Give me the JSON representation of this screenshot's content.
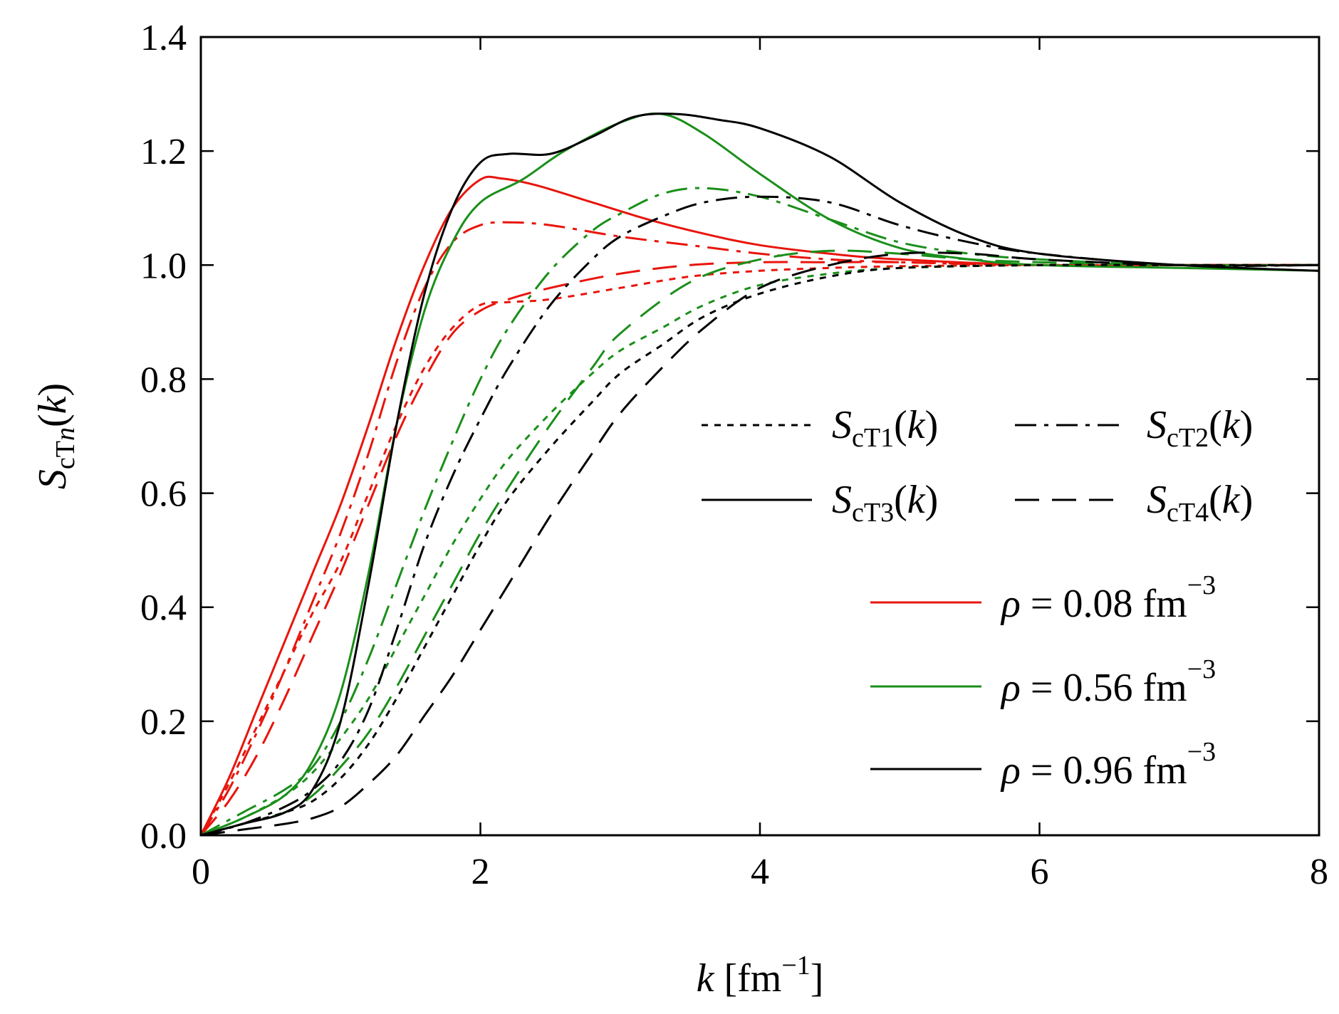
{
  "chart_data": {
    "type": "line",
    "title": "",
    "xlabel": {
      "var": "k",
      "unit_prefix": "[fm",
      "unit_exp": "−1",
      "unit_suffix": "]"
    },
    "ylabel": {
      "var": "S",
      "sub_main": "cT",
      "sub_ital": "n",
      "open": "(",
      "arg": "k",
      "close": ")"
    },
    "xlim": [
      0,
      8
    ],
    "ylim": [
      0,
      1.4
    ],
    "xticks": [
      0,
      2,
      4,
      6,
      8
    ],
    "yticks": [
      0.0,
      0.2,
      0.4,
      0.6,
      0.8,
      1.0,
      1.2,
      1.4
    ],
    "xtick_labels": [
      "0",
      "2",
      "4",
      "6",
      "8"
    ],
    "ytick_labels": [
      "0.0",
      "0.2",
      "0.4",
      "0.6",
      "0.8",
      "1.0",
      "1.2",
      "1.4"
    ],
    "colors": {
      "rho_0.08": "#e8150c",
      "rho_0.56": "#1a8f1a",
      "rho_0.96": "#000000"
    },
    "legend_styles": [
      {
        "label_var": "S",
        "label_sub": "cT1",
        "label_open": "(",
        "label_arg": "k",
        "label_close": ")",
        "dash": "dotted"
      },
      {
        "label_var": "S",
        "label_sub": "cT2",
        "label_open": "(",
        "label_arg": "k",
        "label_close": ")",
        "dash": "dashdot"
      },
      {
        "label_var": "S",
        "label_sub": "cT3",
        "label_open": "(",
        "label_arg": "k",
        "label_close": ")",
        "dash": "solid"
      },
      {
        "label_var": "S",
        "label_sub": "cT4",
        "label_open": "(",
        "label_arg": "k",
        "label_close": ")",
        "dash": "dashed"
      }
    ],
    "legend_densities": [
      {
        "sym": "ρ",
        "eq": " = 0.08 fm",
        "exp": "−3",
        "color_key": "rho_0.08"
      },
      {
        "sym": "ρ",
        "eq": " = 0.56 fm",
        "exp": "−3",
        "color_key": "rho_0.56"
      },
      {
        "sym": "ρ",
        "eq": " = 0.96 fm",
        "exp": "−3",
        "color_key": "rho_0.96"
      }
    ],
    "series": [
      {
        "name": "ScT1 rho=0.08",
        "color_key": "rho_0.08",
        "dash": "dotted",
        "x": [
          0,
          0.2,
          0.4,
          0.6,
          0.8,
          1.0,
          1.2,
          1.4,
          1.6,
          1.8,
          2.0,
          2.2,
          2.5,
          3.0,
          3.5,
          4.0,
          4.5,
          5.0,
          6.0,
          7.0,
          8.0
        ],
        "y": [
          0,
          0.09,
          0.19,
          0.29,
          0.39,
          0.48,
          0.6,
          0.72,
          0.82,
          0.89,
          0.93,
          0.935,
          0.94,
          0.96,
          0.98,
          0.99,
          0.995,
          0.998,
          1.0,
          1.0,
          1.0
        ]
      },
      {
        "name": "ScT2 rho=0.08",
        "color_key": "rho_0.08",
        "dash": "dashdot",
        "x": [
          0,
          0.2,
          0.4,
          0.6,
          0.8,
          1.0,
          1.2,
          1.4,
          1.6,
          1.8,
          2.0,
          2.2,
          2.5,
          3.0,
          3.5,
          4.0,
          4.5,
          5.0,
          6.0,
          7.0,
          8.0
        ],
        "y": [
          0,
          0.08,
          0.18,
          0.29,
          0.41,
          0.53,
          0.67,
          0.83,
          0.96,
          1.04,
          1.07,
          1.075,
          1.07,
          1.05,
          1.035,
          1.02,
          1.01,
          1.005,
          1.0,
          1.0,
          1.0
        ]
      },
      {
        "name": "ScT3 rho=0.08",
        "color_key": "rho_0.08",
        "dash": "solid",
        "x": [
          0,
          0.2,
          0.4,
          0.6,
          0.8,
          1.0,
          1.2,
          1.4,
          1.6,
          1.8,
          2.0,
          2.15,
          2.4,
          2.8,
          3.2,
          3.6,
          4.0,
          4.5,
          5.0,
          6.0,
          7.0,
          8.0
        ],
        "y": [
          0,
          0.1,
          0.22,
          0.34,
          0.46,
          0.58,
          0.72,
          0.87,
          1.0,
          1.1,
          1.15,
          1.152,
          1.14,
          1.11,
          1.08,
          1.055,
          1.035,
          1.02,
          1.01,
          1.0,
          1.0,
          1.0
        ]
      },
      {
        "name": "ScT4 rho=0.08",
        "color_key": "rho_0.08",
        "dash": "dashed",
        "x": [
          0,
          0.2,
          0.4,
          0.6,
          0.8,
          1.0,
          1.2,
          1.4,
          1.6,
          1.8,
          2.0,
          2.2,
          2.5,
          3.0,
          3.5,
          4.0,
          4.5,
          5.0,
          6.0,
          7.0,
          8.0
        ],
        "y": [
          0,
          0.06,
          0.14,
          0.24,
          0.35,
          0.46,
          0.58,
          0.7,
          0.8,
          0.88,
          0.92,
          0.94,
          0.96,
          0.985,
          1.0,
          1.005,
          1.005,
          1.005,
          1.0,
          1.0,
          1.0
        ]
      },
      {
        "name": "ScT1 rho=0.56",
        "color_key": "rho_0.56",
        "dash": "dotted",
        "x": [
          0,
          0.3,
          0.6,
          0.8,
          1.0,
          1.2,
          1.4,
          1.6,
          1.8,
          2.0,
          2.2,
          2.5,
          2.8,
          3.0,
          3.3,
          3.6,
          4.0,
          4.5,
          5.0,
          6.0,
          7.0,
          8.0
        ],
        "y": [
          0,
          0.03,
          0.07,
          0.11,
          0.17,
          0.24,
          0.33,
          0.42,
          0.51,
          0.59,
          0.66,
          0.74,
          0.81,
          0.85,
          0.89,
          0.93,
          0.965,
          0.985,
          0.995,
          1.0,
          1.0,
          1.0
        ]
      },
      {
        "name": "ScT2 rho=0.56",
        "color_key": "rho_0.56",
        "dash": "dashdot",
        "x": [
          0,
          0.3,
          0.6,
          0.8,
          1.0,
          1.2,
          1.4,
          1.6,
          1.8,
          2.0,
          2.2,
          2.5,
          2.8,
          3.0,
          3.3,
          3.6,
          4.0,
          4.5,
          5.0,
          5.5,
          6.0,
          7.0,
          8.0
        ],
        "y": [
          0,
          0.04,
          0.08,
          0.12,
          0.2,
          0.31,
          0.44,
          0.57,
          0.69,
          0.8,
          0.89,
          0.99,
          1.06,
          1.09,
          1.125,
          1.135,
          1.12,
          1.08,
          1.04,
          1.02,
          1.01,
          1.0,
          1.0
        ]
      },
      {
        "name": "ScT3 rho=0.56",
        "color_key": "rho_0.56",
        "dash": "solid",
        "x": [
          0,
          0.3,
          0.6,
          0.8,
          1.0,
          1.2,
          1.4,
          1.6,
          1.8,
          2.0,
          2.3,
          2.6,
          3.0,
          3.3,
          3.6,
          4.0,
          4.5,
          5.0,
          5.5,
          6.0,
          7.0,
          8.0
        ],
        "y": [
          0,
          0.03,
          0.07,
          0.13,
          0.25,
          0.46,
          0.72,
          0.92,
          1.04,
          1.11,
          1.15,
          1.2,
          1.25,
          1.265,
          1.23,
          1.16,
          1.08,
          1.03,
          1.01,
          1.0,
          0.995,
          0.99
        ]
      },
      {
        "name": "ScT4 rho=0.56",
        "color_key": "rho_0.56",
        "dash": "dashed",
        "x": [
          0,
          0.3,
          0.6,
          0.8,
          1.0,
          1.2,
          1.4,
          1.6,
          1.8,
          2.0,
          2.2,
          2.5,
          2.8,
          3.0,
          3.5,
          4.0,
          4.5,
          5.0,
          5.5,
          6.0,
          7.0,
          8.0
        ],
        "y": [
          0,
          0.02,
          0.04,
          0.07,
          0.12,
          0.18,
          0.26,
          0.35,
          0.44,
          0.53,
          0.61,
          0.72,
          0.82,
          0.88,
          0.97,
          1.01,
          1.025,
          1.02,
          1.01,
          1.005,
          1.0,
          1.0
        ]
      },
      {
        "name": "ScT1 rho=0.96",
        "color_key": "rho_0.96",
        "dash": "dotted",
        "x": [
          0,
          0.3,
          0.6,
          0.8,
          1.0,
          1.2,
          1.4,
          1.6,
          1.8,
          2.0,
          2.2,
          2.5,
          2.8,
          3.0,
          3.3,
          3.6,
          4.0,
          4.5,
          5.0,
          6.0,
          7.0,
          8.0
        ],
        "y": [
          0,
          0.02,
          0.04,
          0.06,
          0.1,
          0.16,
          0.24,
          0.33,
          0.42,
          0.51,
          0.59,
          0.68,
          0.76,
          0.81,
          0.86,
          0.91,
          0.95,
          0.98,
          0.995,
          1.0,
          1.0,
          1.0
        ]
      },
      {
        "name": "ScT2 rho=0.96",
        "color_key": "rho_0.96",
        "dash": "dashdot",
        "x": [
          0,
          0.3,
          0.6,
          0.8,
          1.0,
          1.2,
          1.4,
          1.6,
          1.8,
          2.0,
          2.2,
          2.5,
          2.8,
          3.0,
          3.3,
          3.6,
          4.0,
          4.5,
          5.0,
          5.5,
          6.0,
          7.0,
          8.0
        ],
        "y": [
          0,
          0.02,
          0.05,
          0.08,
          0.13,
          0.22,
          0.36,
          0.51,
          0.63,
          0.73,
          0.82,
          0.93,
          1.01,
          1.05,
          1.085,
          1.11,
          1.12,
          1.11,
          1.07,
          1.04,
          1.02,
          1.0,
          1.0
        ]
      },
      {
        "name": "ScT3 rho=0.96",
        "color_key": "rho_0.96",
        "dash": "solid",
        "x": [
          0,
          0.3,
          0.6,
          0.8,
          1.0,
          1.2,
          1.4,
          1.6,
          1.8,
          2.0,
          2.2,
          2.5,
          2.8,
          3.1,
          3.4,
          3.7,
          4.0,
          4.5,
          5.0,
          5.5,
          6.0,
          7.0,
          8.0
        ],
        "y": [
          0,
          0.02,
          0.04,
          0.08,
          0.2,
          0.44,
          0.72,
          0.95,
          1.1,
          1.18,
          1.195,
          1.195,
          1.225,
          1.26,
          1.265,
          1.255,
          1.24,
          1.19,
          1.11,
          1.05,
          1.02,
          1.0,
          0.99
        ]
      },
      {
        "name": "ScT4 rho=0.96",
        "color_key": "rho_0.96",
        "dash": "dashed",
        "x": [
          0,
          0.3,
          0.6,
          0.8,
          1.0,
          1.2,
          1.4,
          1.6,
          1.8,
          2.0,
          2.2,
          2.5,
          2.8,
          3.0,
          3.3,
          3.6,
          4.0,
          4.5,
          5.0,
          5.5,
          6.0,
          7.0,
          8.0
        ],
        "y": [
          0,
          0.01,
          0.02,
          0.03,
          0.05,
          0.09,
          0.14,
          0.21,
          0.28,
          0.36,
          0.44,
          0.56,
          0.67,
          0.74,
          0.82,
          0.89,
          0.96,
          1.0,
          1.02,
          1.02,
          1.01,
          1.0,
          1.0
        ]
      }
    ]
  }
}
